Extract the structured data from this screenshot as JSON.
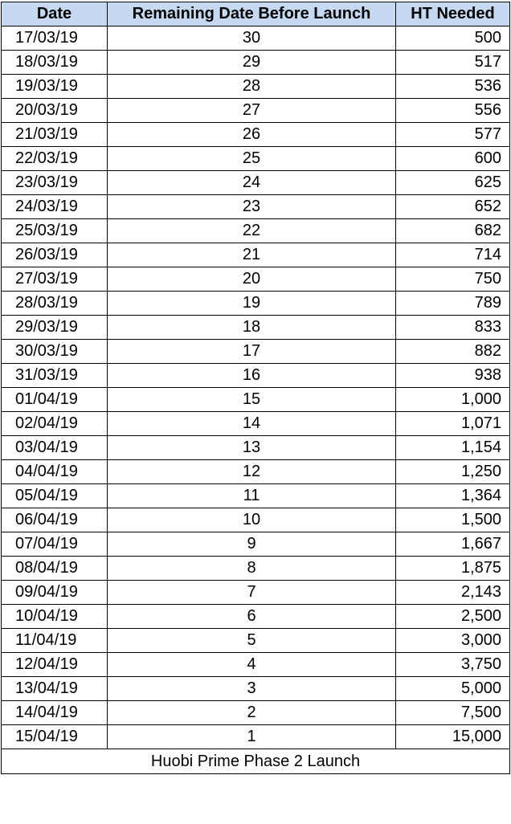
{
  "headers": {
    "date": "Date",
    "remaining": "Remaining Date Before Launch",
    "ht_needed": "HT Needed"
  },
  "rows": [
    {
      "date": "17/03/19",
      "remaining": "30",
      "ht": "500"
    },
    {
      "date": "18/03/19",
      "remaining": "29",
      "ht": "517"
    },
    {
      "date": "19/03/19",
      "remaining": "28",
      "ht": "536"
    },
    {
      "date": "20/03/19",
      "remaining": "27",
      "ht": "556"
    },
    {
      "date": "21/03/19",
      "remaining": "26",
      "ht": "577"
    },
    {
      "date": "22/03/19",
      "remaining": "25",
      "ht": "600"
    },
    {
      "date": "23/03/19",
      "remaining": "24",
      "ht": "625"
    },
    {
      "date": "24/03/19",
      "remaining": "23",
      "ht": "652"
    },
    {
      "date": "25/03/19",
      "remaining": "22",
      "ht": "682"
    },
    {
      "date": "26/03/19",
      "remaining": "21",
      "ht": "714"
    },
    {
      "date": "27/03/19",
      "remaining": "20",
      "ht": "750"
    },
    {
      "date": "28/03/19",
      "remaining": "19",
      "ht": "789"
    },
    {
      "date": "29/03/19",
      "remaining": "18",
      "ht": "833"
    },
    {
      "date": "30/03/19",
      "remaining": "17",
      "ht": "882"
    },
    {
      "date": "31/03/19",
      "remaining": "16",
      "ht": "938"
    },
    {
      "date": "01/04/19",
      "remaining": "15",
      "ht": "1,000"
    },
    {
      "date": "02/04/19",
      "remaining": "14",
      "ht": "1,071"
    },
    {
      "date": "03/04/19",
      "remaining": "13",
      "ht": "1,154"
    },
    {
      "date": "04/04/19",
      "remaining": "12",
      "ht": "1,250"
    },
    {
      "date": "05/04/19",
      "remaining": "11",
      "ht": "1,364"
    },
    {
      "date": "06/04/19",
      "remaining": "10",
      "ht": "1,500"
    },
    {
      "date": "07/04/19",
      "remaining": "9",
      "ht": "1,667"
    },
    {
      "date": "08/04/19",
      "remaining": "8",
      "ht": "1,875"
    },
    {
      "date": "09/04/19",
      "remaining": "7",
      "ht": "2,143"
    },
    {
      "date": "10/04/19",
      "remaining": "6",
      "ht": "2,500"
    },
    {
      "date": "11/04/19",
      "remaining": "5",
      "ht": "3,000"
    },
    {
      "date": "12/04/19",
      "remaining": "4",
      "ht": "3,750"
    },
    {
      "date": "13/04/19",
      "remaining": "3",
      "ht": "5,000"
    },
    {
      "date": "14/04/19",
      "remaining": "2",
      "ht": "7,500"
    },
    {
      "date": "15/04/19",
      "remaining": "1",
      "ht": "15,000"
    }
  ],
  "footer": "Huobi Prime Phase 2 Launch",
  "colors": {
    "header_background": "#c5d9f1",
    "border": "#000000"
  }
}
